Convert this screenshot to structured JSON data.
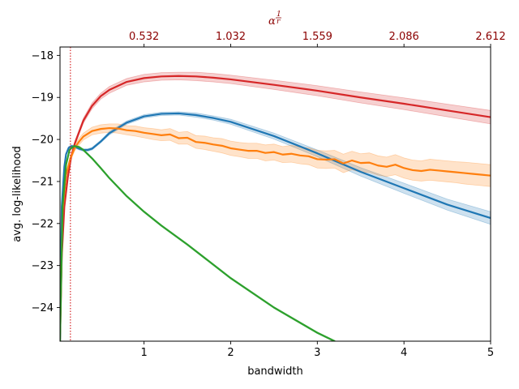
{
  "chart_data": {
    "type": "line",
    "xlabel": "bandwidth",
    "ylabel": "avg. log-likelihood",
    "top_axis_label": "α^(1/r)",
    "top_axis_label_parts": {
      "base": "α",
      "exp_num": "1",
      "exp_den": "r"
    },
    "xlim": [
      0.03,
      5.0
    ],
    "ylim": [
      -24.8,
      -17.8
    ],
    "x_ticks": [
      1,
      2,
      3,
      4,
      5
    ],
    "x_tick_labels": [
      "1",
      "2",
      "3",
      "4",
      "5"
    ],
    "y_ticks": [
      -18,
      -19,
      -20,
      -21,
      -22,
      -23,
      -24
    ],
    "y_tick_labels": [
      "−18",
      "−19",
      "−20",
      "−21",
      "−22",
      "−23",
      "−24"
    ],
    "top_ticks": [
      1.0,
      2.0,
      3.0,
      4.0,
      5.0
    ],
    "top_tick_labels": [
      "0.532",
      "1.032",
      "1.559",
      "2.086",
      "2.612"
    ],
    "top_tick_color": "#8b0000",
    "vline": {
      "x": 0.15,
      "color": "#d62728",
      "style": "dotted"
    },
    "series": [
      {
        "name": "red",
        "color": "#d62728",
        "x": [
          0.03,
          0.05,
          0.08,
          0.12,
          0.16,
          0.2,
          0.3,
          0.4,
          0.5,
          0.6,
          0.8,
          1.0,
          1.2,
          1.4,
          1.6,
          1.8,
          2.0,
          2.5,
          3.0,
          3.5,
          4.0,
          4.5,
          5.0
        ],
        "y": [
          -24.8,
          -22.8,
          -21.6,
          -20.9,
          -20.4,
          -20.1,
          -19.55,
          -19.2,
          -18.97,
          -18.82,
          -18.63,
          -18.54,
          -18.5,
          -18.49,
          -18.5,
          -18.53,
          -18.57,
          -18.7,
          -18.84,
          -19.0,
          -19.15,
          -19.31,
          -19.47
        ],
        "band": [
          0.0,
          0.0,
          0.02,
          0.03,
          0.04,
          0.05,
          0.06,
          0.07,
          0.07,
          0.08,
          0.08,
          0.09,
          0.09,
          0.09,
          0.1,
          0.1,
          0.1,
          0.11,
          0.12,
          0.13,
          0.14,
          0.15,
          0.16
        ]
      },
      {
        "name": "blue",
        "color": "#1f77b4",
        "x": [
          0.03,
          0.05,
          0.08,
          0.1,
          0.13,
          0.16,
          0.2,
          0.25,
          0.3,
          0.35,
          0.4,
          0.5,
          0.6,
          0.8,
          1.0,
          1.2,
          1.4,
          1.6,
          1.8,
          2.0,
          2.5,
          3.0,
          3.5,
          4.0,
          4.5,
          5.0
        ],
        "y": [
          -24.8,
          -21.6,
          -20.65,
          -20.35,
          -20.2,
          -20.16,
          -20.17,
          -20.22,
          -20.25,
          -20.25,
          -20.22,
          -20.05,
          -19.85,
          -19.6,
          -19.45,
          -19.39,
          -19.38,
          -19.42,
          -19.49,
          -19.58,
          -19.92,
          -20.33,
          -20.77,
          -21.16,
          -21.55,
          -21.87
        ],
        "band": [
          0.0,
          0.02,
          0.03,
          0.03,
          0.03,
          0.03,
          0.03,
          0.03,
          0.03,
          0.03,
          0.03,
          0.03,
          0.04,
          0.04,
          0.04,
          0.04,
          0.04,
          0.05,
          0.05,
          0.06,
          0.07,
          0.08,
          0.1,
          0.12,
          0.13,
          0.15
        ]
      },
      {
        "name": "orange",
        "color": "#ff7f0e",
        "x": [
          0.03,
          0.06,
          0.1,
          0.15,
          0.2,
          0.25,
          0.3,
          0.4,
          0.5,
          0.6,
          0.7,
          0.8,
          0.9,
          1.0,
          1.1,
          1.2,
          1.3,
          1.4,
          1.5,
          1.6,
          1.7,
          1.8,
          1.9,
          2.0,
          2.1,
          2.2,
          2.3,
          2.4,
          2.5,
          2.6,
          2.7,
          2.8,
          2.9,
          3.0,
          3.1,
          3.2,
          3.3,
          3.4,
          3.5,
          3.6,
          3.7,
          3.8,
          3.9,
          4.0,
          4.1,
          4.2,
          4.3,
          4.4,
          4.5,
          4.6,
          4.7,
          4.8,
          4.9,
          5.0
        ],
        "y": [
          -24.6,
          -21.7,
          -20.85,
          -20.45,
          -20.2,
          -20.05,
          -19.93,
          -19.8,
          -19.75,
          -19.73,
          -19.74,
          -19.78,
          -19.8,
          -19.84,
          -19.87,
          -19.9,
          -19.88,
          -19.97,
          -19.96,
          -20.06,
          -20.08,
          -20.12,
          -20.15,
          -20.21,
          -20.24,
          -20.27,
          -20.27,
          -20.32,
          -20.3,
          -20.36,
          -20.34,
          -20.38,
          -20.4,
          -20.47,
          -20.48,
          -20.47,
          -20.57,
          -20.5,
          -20.56,
          -20.55,
          -20.62,
          -20.65,
          -20.6,
          -20.68,
          -20.73,
          -20.75,
          -20.72,
          -20.74,
          -20.76,
          -20.78,
          -20.8,
          -20.82,
          -20.84,
          -20.86
        ],
        "band": [
          0.0,
          0.03,
          0.05,
          0.06,
          0.07,
          0.08,
          0.08,
          0.09,
          0.1,
          0.1,
          0.11,
          0.11,
          0.12,
          0.12,
          0.13,
          0.13,
          0.14,
          0.14,
          0.15,
          0.15,
          0.16,
          0.16,
          0.17,
          0.17,
          0.17,
          0.18,
          0.18,
          0.19,
          0.19,
          0.19,
          0.2,
          0.2,
          0.2,
          0.21,
          0.21,
          0.21,
          0.22,
          0.22,
          0.22,
          0.23,
          0.23,
          0.23,
          0.24,
          0.24,
          0.24,
          0.24,
          0.25,
          0.25,
          0.25,
          0.25,
          0.26,
          0.26,
          0.26,
          0.26
        ]
      },
      {
        "name": "green",
        "color": "#2ca02c",
        "x": [
          0.03,
          0.06,
          0.1,
          0.14,
          0.18,
          0.2,
          0.25,
          0.3,
          0.4,
          0.5,
          0.6,
          0.8,
          1.0,
          1.2,
          1.5,
          2.0,
          2.5,
          3.0,
          3.2
        ],
        "y": [
          -24.8,
          -21.6,
          -20.6,
          -20.25,
          -20.17,
          -20.16,
          -20.18,
          -20.25,
          -20.45,
          -20.68,
          -20.92,
          -21.35,
          -21.72,
          -22.05,
          -22.5,
          -23.3,
          -24.0,
          -24.6,
          -24.8
        ],
        "band": [
          0.0,
          0.02,
          0.02,
          0.02,
          0.02,
          0.02,
          0.02,
          0.02,
          0.02,
          0.02,
          0.02,
          0.02,
          0.02,
          0.02,
          0.02,
          0.02,
          0.02,
          0.02,
          0.02
        ]
      }
    ]
  }
}
